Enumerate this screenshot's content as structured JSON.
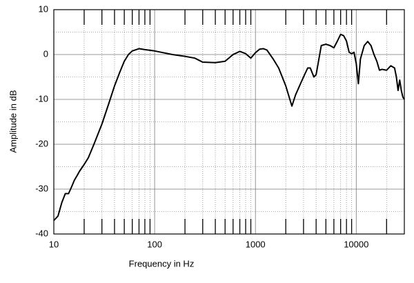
{
  "chart_data": {
    "type": "line",
    "xlabel": "Frequency in Hz",
    "ylabel": "Amplitude in dB",
    "log_x": true,
    "grid": true,
    "xlim": [
      10,
      30000
    ],
    "ylim": [
      -40,
      10
    ],
    "xticks": [
      10,
      100,
      1000,
      10000
    ],
    "yticks": [
      10,
      0,
      -10,
      -20,
      -30,
      -40
    ],
    "x": [
      10,
      11,
      12,
      13,
      14,
      15,
      16,
      17,
      18,
      20,
      22,
      25,
      30,
      35,
      40,
      45,
      50,
      55,
      60,
      70,
      80,
      100,
      150,
      200,
      250,
      300,
      400,
      500,
      600,
      700,
      800,
      900,
      1000,
      1100,
      1200,
      1300,
      1500,
      1700,
      2000,
      2300,
      2500,
      2800,
      3000,
      3300,
      3500,
      3800,
      4000,
      4500,
      5000,
      5500,
      6000,
      6500,
      7000,
      7500,
      8000,
      8500,
      9000,
      9500,
      10000,
      10500,
      11000,
      12000,
      13000,
      14000,
      15000,
      16000,
      17000,
      18000,
      20000,
      22000,
      24000,
      25000,
      26000,
      27000,
      28000,
      29000,
      30000
    ],
    "series": [
      {
        "color": "#000000",
        "values": [
          -37,
          -36,
          -33,
          -31,
          -31,
          -29.5,
          -28,
          -27,
          -26,
          -24.5,
          -23,
          -20,
          -15.5,
          -11,
          -7,
          -4,
          -1.5,
          0,
          0.8,
          1.3,
          1.1,
          0.8,
          0,
          -0.4,
          -0.8,
          -1.7,
          -1.8,
          -1.5,
          0,
          0.7,
          0.2,
          -0.8,
          0.4,
          1.2,
          1.3,
          1,
          -1,
          -3,
          -7,
          -11.5,
          -9,
          -6.5,
          -5,
          -3,
          -3,
          -5,
          -4.5,
          2,
          2.3,
          2,
          1.5,
          3,
          4.5,
          4.2,
          3,
          0.5,
          0.2,
          0.5,
          -2,
          -6.5,
          -1,
          2,
          2.9,
          2,
          0,
          -1.5,
          -3.5,
          -3.3,
          -3.5,
          -2.5,
          -3,
          -5,
          -8,
          -5.7,
          -8,
          -9.5,
          -10
        ]
      }
    ]
  }
}
